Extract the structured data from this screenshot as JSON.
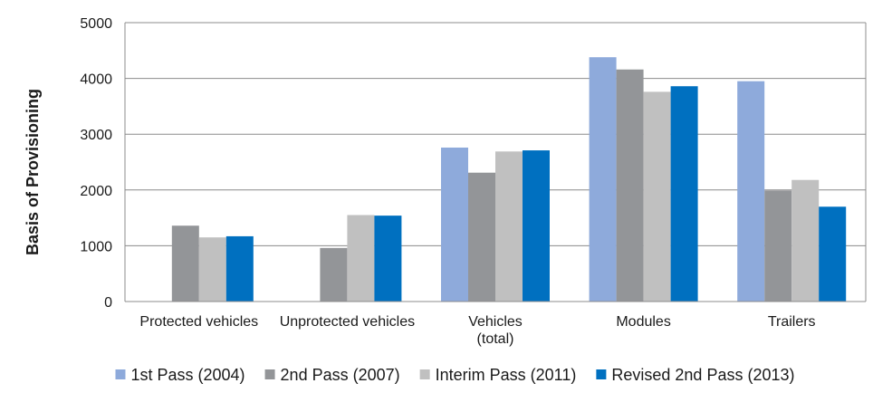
{
  "chart_data": {
    "type": "bar",
    "title": "",
    "xlabel": "",
    "ylabel": "Basis of Provisioning",
    "ylim": [
      0,
      5000
    ],
    "yticks": [
      0,
      1000,
      2000,
      3000,
      4000,
      5000
    ],
    "grid": true,
    "legend_position": "bottom",
    "categories": [
      [
        "Protected vehicles"
      ],
      [
        "Unprotected vehicles"
      ],
      [
        "Vehicles",
        "(total)"
      ],
      [
        "Modules"
      ],
      [
        "Trailers"
      ]
    ],
    "series": [
      {
        "name": "1st Pass (2004)",
        "color": "#8eaadb",
        "values": [
          null,
          null,
          2760,
          4380,
          3950
        ]
      },
      {
        "name": "2nd Pass (2007)",
        "color": "#939598",
        "values": [
          1360,
          960,
          2310,
          4160,
          1990
        ]
      },
      {
        "name": "Interim Pass (2011)",
        "color": "#c0c0c0",
        "values": [
          1150,
          1550,
          2690,
          3760,
          2180
        ]
      },
      {
        "name": "Revised 2nd Pass (2013)",
        "color": "#0070c0",
        "values": [
          1170,
          1540,
          2710,
          3860,
          1700
        ]
      }
    ]
  }
}
